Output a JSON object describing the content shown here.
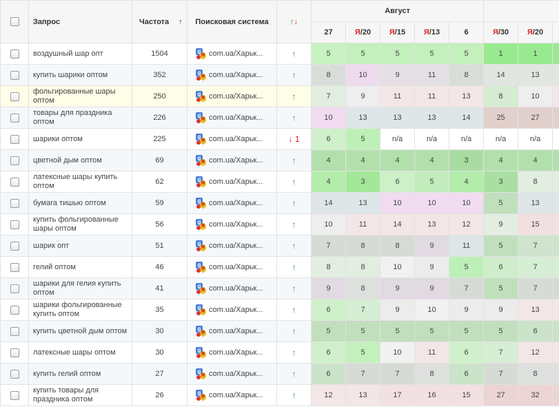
{
  "headers": {
    "query": "Запрос",
    "frequency": "Частота",
    "sort_arrow": "↑",
    "search_engine": "Поисковая система",
    "trend_up": "↑",
    "trend_down": "↓",
    "month": "Август",
    "days": [
      {
        "ya": "",
        "num": "27"
      },
      {
        "ya": "Я",
        "num": "/20"
      },
      {
        "ya": "Я",
        "num": "/15"
      },
      {
        "ya": "Я",
        "num": "/13"
      },
      {
        "ya": "",
        "num": "6"
      },
      {
        "ya": "Я",
        "num": "/30"
      },
      {
        "ya": "Я",
        "num": "/20"
      },
      {
        "ya": "",
        "num": ""
      }
    ]
  },
  "colors": {
    "trend_up": "#2a9b2a",
    "trend_down": "#d22222",
    "row_highlight": "#fefde8"
  },
  "rows": [
    {
      "query": "воздушный шар опт",
      "freq": "1504",
      "se": "com.ua/Харьк...",
      "trend": "↑",
      "trend_dir": "up",
      "pos": [
        "5",
        "5",
        "5",
        "5",
        "5",
        "1",
        "1",
        ""
      ],
      "bg": [
        "#c8f2c2",
        "#c3f0bc",
        "#c3f0bc",
        "#c3f0bc",
        "#c3f0bc",
        "#99ea8e",
        "#99ea8e",
        "#99ea8e"
      ]
    },
    {
      "query": "купить шарики оптом",
      "freq": "352",
      "se": "com.ua/Харьк...",
      "trend": "↑",
      "trend_dir": "up",
      "pos": [
        "8",
        "10",
        "9",
        "11",
        "8",
        "14",
        "13",
        ""
      ],
      "bg": [
        "#d9ddd9",
        "#eedbee",
        "#e6e0e6",
        "#e4dfe4",
        "#d8ddd8",
        "#e1e6e1",
        "#e1e6e1",
        "#e1e6e1"
      ]
    },
    {
      "query": "фольгированные шары оптом",
      "freq": "250",
      "se": "com.ua/Харьк...",
      "trend": "↑",
      "trend_dir": "up",
      "pos": [
        "7",
        "9",
        "11",
        "11",
        "13",
        "8",
        "10",
        ""
      ],
      "bg": [
        "#e1eee0",
        "#eeeeee",
        "#f3e6e6",
        "#f3e6e6",
        "#f3e6e6",
        "#d5ecd3",
        "#eeeeee",
        "#f3e6e6"
      ],
      "highlight": true
    },
    {
      "query": "товары для праздника оптом",
      "freq": "226",
      "se": "com.ua/Харьк...",
      "trend": "↑",
      "trend_dir": "up",
      "pos": [
        "10",
        "13",
        "13",
        "13",
        "14",
        "25",
        "27",
        ""
      ],
      "bg": [
        "#f1dcf1",
        "#dfe6e8",
        "#dfe6e8",
        "#dfe6e8",
        "#dfe6e8",
        "#e2d0cd",
        "#e2d0cd",
        "#e2d0cd"
      ]
    },
    {
      "query": "шарики оптом",
      "freq": "225",
      "se": "com.ua/Харьк...",
      "trend": "↓ 1",
      "trend_dir": "down",
      "pos": [
        "6",
        "5",
        "n/a",
        "n/a",
        "n/a",
        "n/a",
        "n/a",
        ""
      ],
      "bg": [
        "#cff0ca",
        "#bdf0b6",
        "#ffffff",
        "#ffffff",
        "#ffffff",
        "#ffffff",
        "#ffffff",
        "#ffffff"
      ]
    },
    {
      "query": "цветной дым оптом",
      "freq": "69",
      "se": "com.ua/Харьк...",
      "trend": "↑",
      "trend_dir": "up",
      "pos": [
        "4",
        "4",
        "4",
        "4",
        "3",
        "4",
        "4",
        ""
      ],
      "bg": [
        "#b2e0ad",
        "#b2e0ad",
        "#b2e0ad",
        "#b2e0ad",
        "#a9dca3",
        "#b2e0ad",
        "#b2e0ad",
        "#b2e0ad"
      ]
    },
    {
      "query": "латексные шары купить оптом",
      "freq": "62",
      "se": "com.ua/Харьк...",
      "trend": "↑",
      "trend_dir": "up",
      "pos": [
        "4",
        "3",
        "6",
        "5",
        "4",
        "3",
        "8",
        ""
      ],
      "bg": [
        "#b3ecab",
        "#a3e899",
        "#cdf0c8",
        "#c3ecbd",
        "#b3ecab",
        "#a9e0a2",
        "#e1eee0",
        "#e1eee0"
      ]
    },
    {
      "query": "бумага тишью оптом",
      "freq": "59",
      "se": "com.ua/Харьк...",
      "trend": "↑",
      "trend_dir": "up",
      "pos": [
        "14",
        "13",
        "10",
        "10",
        "10",
        "5",
        "13",
        ""
      ],
      "bg": [
        "#dfe6e8",
        "#dfe6e8",
        "#f1dcf1",
        "#f1dcf1",
        "#f1dcf1",
        "#c1dfbd",
        "#dfe6e8",
        "#dfe6e8"
      ]
    },
    {
      "query": "купить фольгированные шары оптом",
      "freq": "56",
      "se": "com.ua/Харьк...",
      "trend": "↑",
      "trend_dir": "up",
      "pos": [
        "10",
        "11",
        "14",
        "13",
        "12",
        "9",
        "15",
        ""
      ],
      "bg": [
        "#eeeeee",
        "#f3e6e6",
        "#f3e6e6",
        "#f3e6e6",
        "#f3e6e6",
        "#e1eee0",
        "#f3e0e0",
        "#f3e0e0"
      ]
    },
    {
      "query": "шарик опт",
      "freq": "51",
      "se": "com.ua/Харьк...",
      "trend": "↑",
      "trend_dir": "up",
      "pos": [
        "7",
        "8",
        "8",
        "9",
        "11",
        "5",
        "7",
        ""
      ],
      "bg": [
        "#d6dbd6",
        "#d6dbd6",
        "#d6dbd6",
        "#e2dae2",
        "#dfe6e8",
        "#c1dfbd",
        "#cfe3cd",
        "#cfe3cd"
      ]
    },
    {
      "query": "гелий оптом",
      "freq": "46",
      "se": "com.ua/Харьк...",
      "trend": "↑",
      "trend_dir": "up",
      "pos": [
        "8",
        "8",
        "10",
        "9",
        "5",
        "6",
        "7",
        ""
      ],
      "bg": [
        "#e1eee0",
        "#e1eee0",
        "#f1f1f1",
        "#ececec",
        "#bdf0b6",
        "#cfeccb",
        "#d6eed3",
        "#d6eed3"
      ]
    },
    {
      "query": "шарики для гелия купить оптом",
      "freq": "41",
      "se": "com.ua/Харьк...",
      "trend": "↑",
      "trend_dir": "up",
      "pos": [
        "9",
        "8",
        "9",
        "9",
        "7",
        "5",
        "7",
        ""
      ],
      "bg": [
        "#e2dae2",
        "#dde0dd",
        "#e2dae2",
        "#e2dae2",
        "#d6dbd6",
        "#c1dfbd",
        "#d6dbd6",
        "#d6dbd6"
      ]
    },
    {
      "query": "шарики фольгированные купить оптом",
      "freq": "35",
      "se": "com.ua/Харьк...",
      "trend": "↑",
      "trend_dir": "up",
      "pos": [
        "6",
        "7",
        "9",
        "10",
        "9",
        "9",
        "13",
        ""
      ],
      "bg": [
        "#cff0ca",
        "#d6eed3",
        "#ececec",
        "#f1f1f1",
        "#ececec",
        "#ececec",
        "#f3e6e6",
        "#f3e6e6"
      ]
    },
    {
      "query": "купить цветной дым оптом",
      "freq": "30",
      "se": "com.ua/Харьк...",
      "trend": "↑",
      "trend_dir": "up",
      "pos": [
        "5",
        "5",
        "5",
        "5",
        "5",
        "5",
        "6",
        ""
      ],
      "bg": [
        "#c1dfbd",
        "#c1dfbd",
        "#c1dfbd",
        "#c1dfbd",
        "#c1dfbd",
        "#c1dfbd",
        "#cbe3c8",
        "#cbe3c8"
      ]
    },
    {
      "query": "латексные шары оптом",
      "freq": "30",
      "se": "com.ua/Харьк...",
      "trend": "↑",
      "trend_dir": "up",
      "pos": [
        "6",
        "5",
        "10",
        "11",
        "6",
        "7",
        "12",
        ""
      ],
      "bg": [
        "#cff0ca",
        "#c3f0bc",
        "#f1f1f1",
        "#f3e6e6",
        "#cff0ca",
        "#d6eed3",
        "#f3e6e6",
        "#f3e6e6"
      ]
    },
    {
      "query": "купить гелий оптом",
      "freq": "27",
      "se": "com.ua/Харьк...",
      "trend": "↑",
      "trend_dir": "up",
      "pos": [
        "6",
        "7",
        "7",
        "8",
        "6",
        "7",
        "8",
        ""
      ],
      "bg": [
        "#cbe3c8",
        "#d6dbd6",
        "#d6dbd6",
        "#dde0dd",
        "#cbe3c8",
        "#d6dbd6",
        "#dde0dd",
        "#dde0dd"
      ]
    },
    {
      "query": "купить товары для праздника оптом",
      "freq": "26",
      "se": "com.ua/Харьк...",
      "trend": "↑",
      "trend_dir": "up",
      "pos": [
        "12",
        "13",
        "17",
        "16",
        "15",
        "27",
        "32",
        ""
      ],
      "bg": [
        "#f3e6e6",
        "#f3e6e6",
        "#f3e0e0",
        "#f3e0e0",
        "#f3e0e0",
        "#ecd4d4",
        "#ecd4d4",
        "#ecd4d4"
      ]
    }
  ]
}
